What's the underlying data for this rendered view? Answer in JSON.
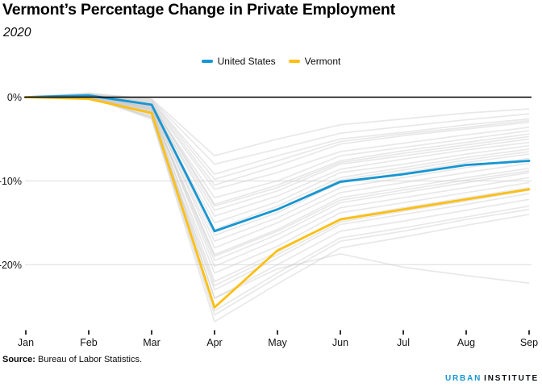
{
  "header": {
    "title": "Vermont’s Percentage Change in Private Employment",
    "subtitle": "2020"
  },
  "legend": {
    "items": [
      {
        "label": "United States",
        "color": "#1696d2"
      },
      {
        "label": "Vermont",
        "color": "#fdbf11"
      }
    ]
  },
  "chart_data": {
    "type": "line",
    "title": "Vermont’s Percentage Change in Private Employment",
    "subtitle": "2020",
    "x": [
      "Jan",
      "Feb",
      "Mar",
      "Apr",
      "May",
      "Jun",
      "Jul",
      "Aug",
      "Sep"
    ],
    "y_unit": "percent change",
    "ytick_labels": [
      "0%",
      "-10%",
      "-20%"
    ],
    "ytick_values": [
      0,
      -10,
      -20
    ],
    "ylim": [
      -28,
      1.5
    ],
    "grid": "horizontal",
    "legend_position": "top-center",
    "series": [
      {
        "name": "United States",
        "color": "#1696d2",
        "values": [
          0,
          0.2,
          -0.9,
          -16.0,
          -13.4,
          -10.1,
          -9.2,
          -8.1,
          -7.6
        ]
      },
      {
        "name": "Vermont",
        "color": "#fdbf11",
        "values": [
          0,
          -0.2,
          -1.9,
          -25.1,
          -18.3,
          -14.6,
          -13.4,
          -12.2,
          -11.0
        ]
      }
    ],
    "background_color": "#c9c9c9",
    "other_states_background": [
      [
        0,
        0.4,
        -0.2,
        -7.0,
        -5.0,
        -3.3,
        -2.6,
        -1.9,
        -1.4
      ],
      [
        0,
        0.5,
        -0.3,
        -8.0,
        -6.2,
        -4.3,
        -3.5,
        -2.7,
        -2.0
      ],
      [
        0,
        0.3,
        -0.4,
        -9.2,
        -7.0,
        -5.0,
        -4.2,
        -3.3,
        -2.6
      ],
      [
        0,
        0.3,
        -0.5,
        -9.8,
        -7.6,
        -5.3,
        -4.4,
        -3.6,
        -2.8
      ],
      [
        0,
        0.2,
        -0.6,
        -10.5,
        -8.2,
        -5.6,
        -4.6,
        -3.8,
        -3.0
      ],
      [
        0,
        0.4,
        -0.8,
        -11.0,
        -9.0,
        -6.5,
        -5.5,
        -4.5,
        -3.6
      ],
      [
        0,
        0.1,
        -1.0,
        -12.0,
        -10.0,
        -7.0,
        -6.0,
        -5.0,
        -4.0
      ],
      [
        0,
        0.3,
        -0.7,
        -12.8,
        -10.5,
        -7.6,
        -6.4,
        -5.4,
        -4.4
      ],
      [
        0,
        0.3,
        -0.9,
        -13.0,
        -10.8,
        -7.8,
        -6.7,
        -5.7,
        -4.7
      ],
      [
        0,
        0.2,
        -1.2,
        -13.5,
        -11.2,
        -8.0,
        -7.0,
        -6.0,
        -5.0
      ],
      [
        0,
        0.0,
        -1.0,
        -14.2,
        -11.8,
        -8.6,
        -7.4,
        -6.3,
        -5.4
      ],
      [
        0,
        0.2,
        -1.4,
        -15.0,
        -12.5,
        -9.0,
        -8.0,
        -6.8,
        -5.8
      ],
      [
        0,
        0.1,
        -1.1,
        -15.8,
        -13.0,
        -9.6,
        -8.4,
        -7.2,
        -6.2
      ],
      [
        0,
        0.1,
        -1.3,
        -16.0,
        -13.4,
        -9.9,
        -8.7,
        -7.5,
        -6.5
      ],
      [
        0,
        0.3,
        -1.3,
        -16.5,
        -13.8,
        -10.2,
        -9.0,
        -7.8,
        -6.8
      ],
      [
        0,
        0.0,
        -1.5,
        -17.2,
        -14.4,
        -10.8,
        -9.6,
        -8.4,
        -7.3
      ],
      [
        0,
        0.2,
        -1.2,
        -18.0,
        -15.0,
        -11.4,
        -10.2,
        -9.0,
        -7.9
      ],
      [
        0,
        0.1,
        -1.6,
        -18.8,
        -15.8,
        -12.0,
        -10.8,
        -9.6,
        -8.5
      ],
      [
        0,
        0.2,
        -1.7,
        -19.0,
        -16.0,
        -12.3,
        -11.1,
        -9.9,
        -8.8
      ],
      [
        0,
        0.0,
        -1.8,
        -19.5,
        -16.4,
        -12.6,
        -11.4,
        -10.2,
        -9.0
      ],
      [
        0,
        0.2,
        -1.4,
        -20.2,
        -17.0,
        -13.2,
        -12.0,
        -10.8,
        -9.6
      ],
      [
        0,
        0.1,
        -2.0,
        -21.0,
        -17.8,
        -13.8,
        -12.6,
        -11.4,
        -10.2
      ],
      [
        0,
        0.0,
        -1.7,
        -22.0,
        -18.5,
        -14.5,
        -13.2,
        -12.0,
        -10.8
      ],
      [
        0,
        0.0,
        -2.3,
        -22.5,
        -18.8,
        -14.9,
        -13.6,
        -12.4,
        -11.1
      ],
      [
        0,
        0.2,
        -2.2,
        -23.0,
        -19.2,
        -15.2,
        -14.0,
        -12.8,
        -11.5
      ],
      [
        0,
        0.1,
        -1.9,
        -24.0,
        -20.0,
        -16.0,
        -14.8,
        -13.5,
        -12.2
      ],
      [
        0,
        0.0,
        -2.4,
        -25.5,
        -21.0,
        -16.8,
        -15.6,
        -14.3,
        -13.0
      ],
      [
        0,
        0.1,
        -2.5,
        -26.0,
        -21.5,
        -17.2,
        -16.0,
        -14.6,
        -13.4
      ],
      [
        0,
        0.0,
        -2.6,
        -26.8,
        -22.3,
        -18.0,
        -16.7,
        -15.3,
        -14.0
      ],
      [
        0,
        0.2,
        -1.5,
        -24.0,
        -20.5,
        -18.7,
        -20.3,
        -21.3,
        -22.2
      ]
    ]
  },
  "footer": {
    "source_label": "Source:",
    "source_text": " Bureau of Labor Statistics.",
    "logo": {
      "part1": "URBAN",
      "part2": "INSTITUTE",
      "accent_color": "#1696d2",
      "dark_color": "#0b0f14"
    }
  }
}
